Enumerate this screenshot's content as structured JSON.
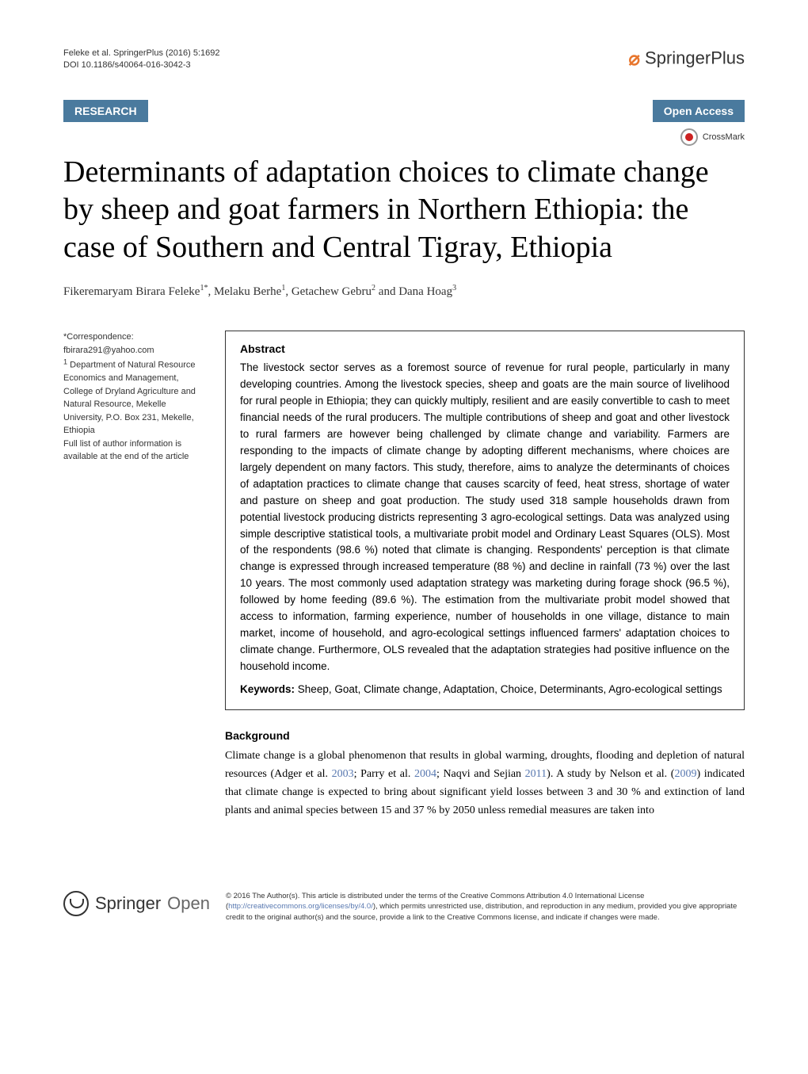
{
  "header": {
    "citation_line1": "Feleke et al. SpringerPlus  (2016) 5:1692",
    "citation_line2": "DOI 10.1186/s40064-016-3042-3",
    "publisher_name": "SpringerPlus"
  },
  "badges": {
    "research": "RESEARCH",
    "open_access": "Open Access",
    "crossmark": "CrossMark"
  },
  "title": "Determinants of adaptation choices to climate change by sheep and goat farmers in Northern Ethiopia: the case of Southern and Central Tigray, Ethiopia",
  "authors_html": "Fikeremaryam Birara Feleke<sup>1*</sup>, Melaku Berhe<sup>1</sup>, Getachew Gebru<sup>2</sup> and Dana Hoag<sup>3</sup>",
  "sidebar": {
    "correspondence_label": "*Correspondence:",
    "email": "fbirara291@yahoo.com",
    "affiliation": "Department of Natural Resource Economics and Management, College of Dryland Agriculture and Natural Resource, Mekelle University, P.O. Box 231, Mekelle, Ethiopia",
    "note": "Full list of author information is available at the end of the article"
  },
  "abstract": {
    "heading": "Abstract",
    "text": "The livestock sector serves as a foremost source of revenue for rural people, particularly in many developing countries. Among the livestock species, sheep and goats are the main source of livelihood for rural people in Ethiopia; they can quickly multiply, resilient and are easily convertible to cash to meet financial needs of the rural producers. The multiple contributions of sheep and goat and other livestock to rural farmers are however being challenged by climate change and variability. Farmers are responding to the impacts of climate change by adopting different mechanisms, where choices are largely dependent on many factors. This study, therefore, aims to analyze the determinants of choices of adaptation practices to climate change that causes scarcity of feed, heat stress, shortage of water and pasture on sheep and goat production. The study used 318 sample households drawn from potential livestock producing districts representing 3 agro-ecological settings. Data was analyzed using simple descriptive statistical tools, a multivariate probit model and Ordinary Least Squares (OLS). Most of the respondents (98.6 %) noted that climate is changing. Respondents' perception is that climate change is expressed through increased temperature (88 %) and decline in rainfall (73 %) over the last 10 years. The most commonly used adaptation strategy was marketing during forage shock (96.5 %), followed by home feeding (89.6 %). The estimation from the multivariate probit model showed that access to information, farming experience, number of households in one village, distance to main market, income of household, and agro-ecological settings influenced farmers' adaptation choices to climate change. Furthermore, OLS revealed that the adaptation strategies had positive influence on the household income.",
    "keywords_label": "Keywords:",
    "keywords": "Sheep, Goat, Climate change, Adaptation, Choice, Determinants, Agro-ecological settings"
  },
  "background": {
    "heading": "Background",
    "text_part1": "Climate change is a global phenomenon that results in global warming, droughts, flooding and depletion of natural resources (Adger et al. ",
    "cite1": "2003",
    "text_part2": "; Parry et al. ",
    "cite2": "2004",
    "text_part3": "; Naqvi and Sejian ",
    "cite3": "2011",
    "text_part4": "). A study by Nelson et al. (",
    "cite4": "2009",
    "text_part5": ") indicated that climate change is expected to bring about significant yield losses between 3 and 30 % and extinction of land plants and animal species between 15 and 37 % by 2050 unless remedial measures are taken into"
  },
  "footer": {
    "springer_open": "Springer",
    "springer_open_suffix": "Open",
    "license_part1": "© 2016 The Author(s). This article is distributed under the terms of the Creative Commons Attribution 4.0 International License (",
    "license_url": "http://creativecommons.org/licenses/by/4.0/",
    "license_part2": "), which permits unrestricted use, distribution, and reproduction in any medium, provided you give appropriate credit to the original author(s) and the source, provide a link to the Creative Commons license, and indicate if changes were made."
  },
  "colors": {
    "badge_bg": "#4a7a9e",
    "brand_orange": "#e8762d",
    "link_blue": "#5878b0"
  }
}
